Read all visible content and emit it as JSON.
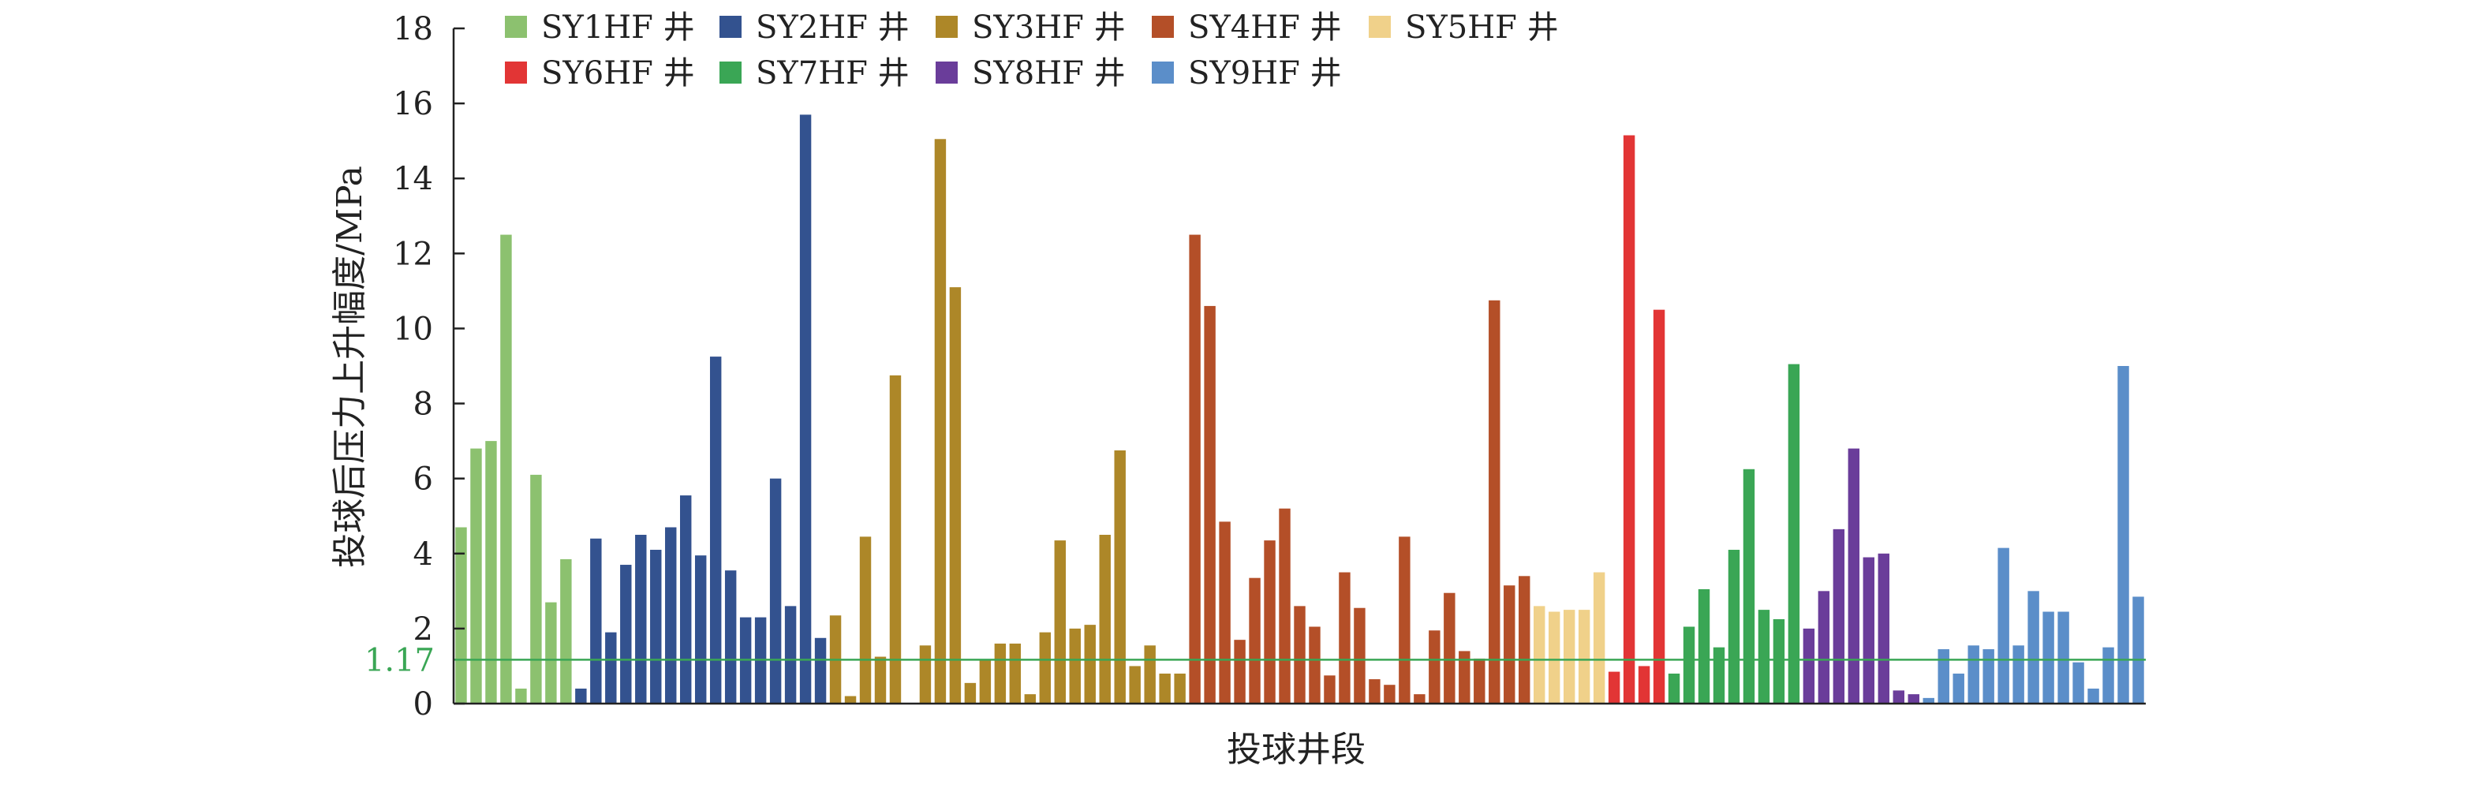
{
  "chart_data": {
    "type": "bar",
    "xlabel": "投球井段",
    "ylabel": "投球后压力上升幅度/MPa",
    "ylim": [
      0,
      18
    ],
    "yticks": [
      0,
      2,
      4,
      6,
      8,
      10,
      12,
      14,
      16,
      18
    ],
    "grid": false,
    "legend_position": "top",
    "reference_line": {
      "value": 1.17,
      "label": "1.17",
      "color": "#3aa655"
    },
    "series": [
      {
        "name": "SY1HF 井",
        "color": "#8cc16f",
        "values": [
          4.7,
          6.8,
          7.0,
          12.5,
          0.4,
          6.1,
          2.7,
          3.85
        ]
      },
      {
        "name": "SY2HF 井",
        "color": "#33528f",
        "values": [
          0.4,
          4.4,
          1.9,
          3.7,
          4.5,
          4.1,
          4.7,
          5.55,
          3.95,
          9.25,
          3.55,
          2.3,
          2.3,
          6.0,
          2.6,
          15.7,
          1.75
        ]
      },
      {
        "name": "SY3HF 井",
        "color": "#ad8728",
        "values": [
          2.35,
          0.2,
          4.45,
          1.25,
          8.75,
          0.0,
          1.55,
          15.05,
          11.1,
          0.55,
          1.15,
          1.6,
          1.6,
          0.25,
          1.9,
          4.35,
          2.0,
          2.1,
          4.5,
          6.75,
          1.0,
          1.55,
          0.8,
          0.8
        ]
      },
      {
        "name": "SY4HF 井",
        "color": "#b44f28",
        "values": [
          12.5,
          10.6,
          4.85,
          1.7,
          3.35,
          4.35,
          5.2,
          2.6,
          2.05,
          0.75,
          3.5,
          2.55,
          0.65,
          0.5,
          4.45,
          0.25,
          1.95,
          2.95,
          1.4,
          1.2,
          10.75,
          3.15,
          3.4
        ]
      },
      {
        "name": "SY5HF 井",
        "color": "#f0d18a",
        "values": [
          2.6,
          2.45,
          2.5,
          2.5,
          3.5
        ]
      },
      {
        "name": "SY6HF 井",
        "color": "#e23535",
        "values": [
          0.85,
          15.15,
          1.0,
          10.5
        ]
      },
      {
        "name": "SY7HF 井",
        "color": "#3aa655",
        "values": [
          0.8,
          2.05,
          3.05,
          1.5,
          4.1,
          6.25,
          2.5,
          2.25,
          9.05
        ]
      },
      {
        "name": "SY8HF 井",
        "color": "#6a3d9a",
        "values": [
          2.0,
          3.0,
          4.65,
          6.8,
          3.9,
          4.0,
          0.35,
          0.25
        ]
      },
      {
        "name": "SY9HF 井",
        "color": "#5b8ec9",
        "values": [
          0.15,
          1.45,
          0.8,
          1.55,
          1.45,
          4.15,
          1.55,
          3.0,
          2.45,
          2.45,
          1.1,
          0.4,
          1.5,
          9.0,
          2.85
        ]
      }
    ]
  }
}
